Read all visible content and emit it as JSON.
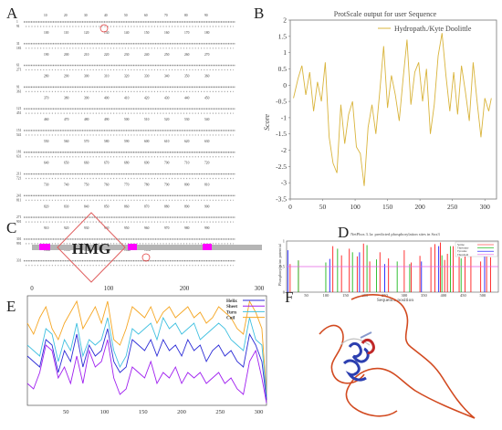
{
  "panel_labels": {
    "a": "A",
    "b": "B",
    "c": "C",
    "d": "D",
    "e": "E",
    "f": "F"
  },
  "panel_a": {
    "ticks_row1": [
      "10",
      "20",
      "30",
      "40",
      "50",
      "60",
      "70",
      "80",
      "90"
    ],
    "ticks_rows": [
      [
        "100",
        "110",
        "120",
        "130",
        "140",
        "150",
        "160",
        "170",
        "180"
      ],
      [
        "190",
        "200",
        "210",
        "220",
        "230",
        "240",
        "250",
        "260",
        "270"
      ],
      [
        "280",
        "290",
        "300",
        "310",
        "320",
        "330",
        "340",
        "350",
        "360"
      ],
      [
        "370",
        "380",
        "390",
        "400",
        "410",
        "420",
        "430",
        "440",
        "450"
      ],
      [
        "460",
        "470",
        "480",
        "490",
        "500",
        "510",
        "520",
        "530",
        "540"
      ],
      [
        "550",
        "560",
        "570",
        "580",
        "590",
        "600",
        "610",
        "620",
        "630"
      ],
      [
        "640",
        "650",
        "660",
        "670",
        "680",
        "690",
        "700",
        "710",
        "720"
      ],
      [
        "730",
        "740",
        "750",
        "760",
        "770",
        "780",
        "790",
        "800",
        "810"
      ],
      [
        "820",
        "830",
        "840",
        "850",
        "860",
        "870",
        "880",
        "890",
        "900"
      ],
      [
        "910",
        "920",
        "930",
        "940",
        "950",
        "960",
        "970",
        "980",
        "990"
      ],
      [
        "1000",
        "1010",
        "1020",
        "1030",
        "1040",
        "1050"
      ]
    ],
    "left_numbers": [
      "1",
      "91",
      "31",
      "181",
      "61",
      "271",
      "91",
      "361",
      "121",
      "451",
      "151",
      "541",
      "181",
      "631",
      "211",
      "721",
      "241",
      "811",
      "271",
      "901",
      "301",
      "991",
      "331"
    ]
  },
  "panel_b": {
    "title": "ProtScale output for user Sequence",
    "legend": "Hydropath./Kyte Doolittle",
    "ylabel": "Score",
    "line_color": "#d9b43c"
  },
  "panel_c": {
    "domain_label": "HMG",
    "ticks": [
      "0",
      "100",
      "200",
      "300"
    ],
    "bar_color": "#b5b5b5",
    "box_color": "#ff00ff"
  },
  "panel_d": {
    "title": "NetPhos 3.1a: predicted phosphorylation sites in Sox3",
    "xlabel": "Sequence position",
    "ylabel": "Phosphorylation potential",
    "legend": [
      "Serine",
      "Threonine",
      "Tyrosine",
      "Threshold"
    ],
    "threshold": 0.5
  },
  "panel_e": {
    "legend": [
      "Helix",
      "Sheet",
      "Turn",
      "Coil"
    ],
    "colors": {
      "helix": "#2b2bd6",
      "sheet": "#a020f0",
      "turn": "#40c0e0",
      "coil": "#f5a623"
    },
    "ticks": [
      "50",
      "100",
      "150",
      "200",
      "250",
      "300"
    ]
  },
  "chart_data": [
    {
      "type": "line",
      "panel": "B",
      "title": "ProtScale output for user Sequence",
      "xlabel": "",
      "ylabel": "Score",
      "xlim": [
        0,
        318
      ],
      "ylim": [
        -3.5,
        2
      ],
      "xticks": [
        0,
        50,
        100,
        150,
        200,
        250,
        300
      ],
      "yticks": [
        -3.5,
        -3,
        -2.5,
        -2,
        -1.5,
        -1,
        -0.5,
        0,
        0.5,
        1,
        1.5,
        2
      ],
      "series": [
        {
          "name": "Hydropath./Kyte Doolittle",
          "x": [
            5,
            12,
            18,
            24,
            30,
            36,
            42,
            48,
            54,
            60,
            66,
            72,
            78,
            84,
            90,
            96,
            102,
            108,
            114,
            120,
            126,
            132,
            138,
            144,
            150,
            156,
            162,
            168,
            174,
            180,
            186,
            192,
            198,
            204,
            210,
            216,
            222,
            228,
            234,
            240,
            246,
            252,
            258,
            264,
            270,
            276,
            282,
            288,
            294,
            300,
            306,
            310
          ],
          "y": [
            -0.4,
            0.2,
            0.6,
            -0.3,
            0.4,
            -0.8,
            0.1,
            -0.5,
            0.7,
            -1.6,
            -2.4,
            -2.7,
            -0.6,
            -1.8,
            -0.9,
            -0.5,
            -1.9,
            -2.1,
            -3.1,
            -1.3,
            -0.6,
            -1.5,
            -0.2,
            1.2,
            -0.7,
            0.3,
            -0.3,
            -1.1,
            0.2,
            1.4,
            -0.6,
            0.4,
            0.7,
            -0.5,
            0.5,
            -1.5,
            -0.6,
            0.9,
            1.6,
            0.3,
            -0.8,
            0.4,
            -0.9,
            0.6,
            -0.2,
            -1.1,
            0.7,
            -0.5,
            -1.6,
            -0.4,
            -0.8,
            -0.4
          ]
        }
      ]
    },
    {
      "type": "bar",
      "panel": "D",
      "title": "NetPhos 3.1a: predicted phosphorylation sites in Sox3",
      "xlabel": "Sequence position",
      "ylabel": "Phosphorylation potential",
      "xlim": [
        0,
        540
      ],
      "ylim": [
        0,
        1
      ],
      "xticks": [
        50,
        100,
        150,
        200,
        250,
        300,
        350,
        400,
        450,
        500
      ],
      "yticks": [
        0,
        0.5,
        1
      ],
      "threshold": 0.5,
      "series": [
        {
          "name": "Serine",
          "color": "#ff0000",
          "x": [
            9,
            30,
            118,
            140,
            160,
            180,
            196,
            212,
            238,
            260,
            300,
            318,
            340,
            368,
            378,
            392,
            403,
            410,
            425,
            440,
            455,
            470,
            495,
            510,
            520
          ],
          "values": [
            0.55,
            0.62,
            0.9,
            0.72,
            0.85,
            0.7,
            0.95,
            0.6,
            0.78,
            0.66,
            0.82,
            0.58,
            0.71,
            0.88,
            0.94,
            0.97,
            0.63,
            0.75,
            0.9,
            0.69,
            0.8,
            0.73,
            0.6,
            0.92,
            0.68
          ]
        },
        {
          "name": "Threonine",
          "color": "#00b000",
          "x": [
            30,
            100,
            130,
            168,
            205,
            229,
            282,
            314,
            396,
            418,
            445
          ],
          "values": [
            0.62,
            0.58,
            0.85,
            0.78,
            0.92,
            0.64,
            0.6,
            0.55,
            0.72,
            0.9,
            0.66
          ]
        },
        {
          "name": "Tyrosine",
          "color": "#0000ff",
          "x": [
            3,
            110,
            186,
            250,
            344,
            388,
            505
          ],
          "values": [
            0.82,
            0.65,
            0.78,
            0.55,
            0.6,
            0.9,
            0.7
          ]
        }
      ]
    },
    {
      "type": "line",
      "panel": "E",
      "xlim": [
        0,
        310
      ],
      "ylim": [
        0,
        1
      ],
      "xticks": [
        50,
        100,
        150,
        200,
        250,
        300
      ],
      "x": [
        0,
        8,
        16,
        24,
        32,
        40,
        48,
        56,
        64,
        72,
        80,
        88,
        96,
        104,
        112,
        120,
        128,
        136,
        144,
        152,
        160,
        168,
        176,
        184,
        192,
        200,
        208,
        216,
        224,
        232,
        240,
        248,
        256,
        264,
        272,
        280,
        288,
        296,
        304,
        310
      ],
      "series": [
        {
          "name": "Helix",
          "values": [
            0.45,
            0.4,
            0.35,
            0.6,
            0.55,
            0.3,
            0.5,
            0.4,
            0.65,
            0.35,
            0.55,
            0.45,
            0.5,
            0.7,
            0.4,
            0.3,
            0.35,
            0.6,
            0.55,
            0.5,
            0.6,
            0.45,
            0.6,
            0.5,
            0.55,
            0.45,
            0.6,
            0.5,
            0.55,
            0.4,
            0.5,
            0.55,
            0.45,
            0.5,
            0.4,
            0.35,
            0.65,
            0.55,
            0.4,
            0.05
          ]
        },
        {
          "name": "Sheet",
          "values": [
            0.2,
            0.15,
            0.3,
            0.55,
            0.5,
            0.25,
            0.35,
            0.2,
            0.45,
            0.2,
            0.5,
            0.35,
            0.4,
            0.6,
            0.25,
            0.1,
            0.15,
            0.35,
            0.3,
            0.25,
            0.4,
            0.2,
            0.3,
            0.25,
            0.35,
            0.2,
            0.3,
            0.25,
            0.3,
            0.2,
            0.25,
            0.3,
            0.2,
            0.25,
            0.15,
            0.1,
            0.4,
            0.5,
            0.25,
            0.02
          ]
        },
        {
          "name": "Turn",
          "values": [
            0.55,
            0.5,
            0.45,
            0.7,
            0.65,
            0.4,
            0.6,
            0.5,
            0.75,
            0.45,
            0.6,
            0.55,
            0.6,
            0.8,
            0.5,
            0.35,
            0.45,
            0.7,
            0.65,
            0.7,
            0.75,
            0.6,
            0.8,
            0.7,
            0.75,
            0.65,
            0.7,
            0.75,
            0.6,
            0.65,
            0.7,
            0.75,
            0.7,
            0.6,
            0.55,
            0.5,
            0.8,
            0.6,
            0.55,
            0.08
          ]
        },
        {
          "name": "Coil",
          "values": [
            0.75,
            0.65,
            0.8,
            0.9,
            0.7,
            0.6,
            0.75,
            0.85,
            0.95,
            0.7,
            0.8,
            0.9,
            0.75,
            0.95,
            0.6,
            0.55,
            0.7,
            0.9,
            0.85,
            0.8,
            0.9,
            0.75,
            0.85,
            0.9,
            0.8,
            0.85,
            0.9,
            0.8,
            0.85,
            0.75,
            0.8,
            0.9,
            0.85,
            0.8,
            0.7,
            0.65,
            0.95,
            0.85,
            0.7,
            0.1
          ]
        }
      ]
    }
  ]
}
